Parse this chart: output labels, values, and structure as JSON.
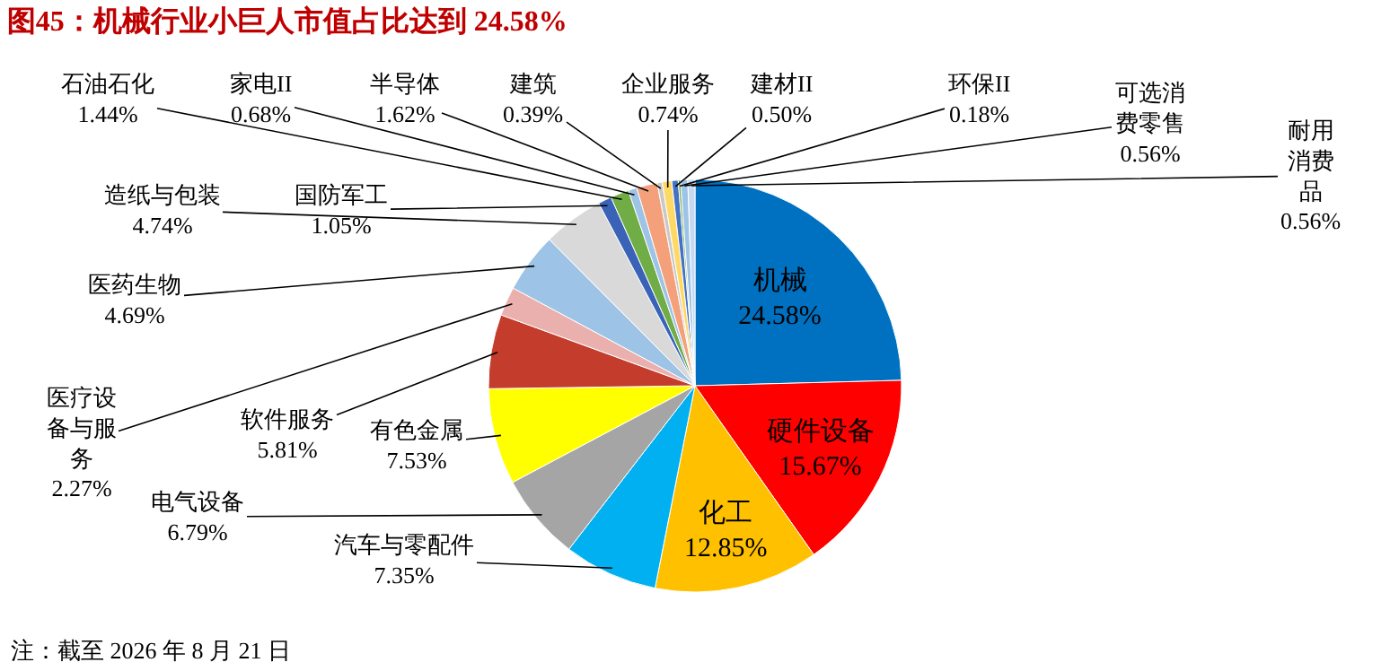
{
  "chart_data": {
    "type": "pie",
    "title": "图45：机械行业小巨人市值占比达到 24.58%",
    "categories": [
      "机械",
      "硬件设备",
      "化工",
      "汽车与零配件",
      "电气设备",
      "有色金属",
      "软件服务",
      "医疗设备与服务",
      "医药生物",
      "造纸与包装",
      "国防军工",
      "石油石化",
      "家电II",
      "半导体",
      "建筑",
      "企业服务",
      "建材II",
      "环保II",
      "可选消费零售",
      "耐用消费品"
    ],
    "values": [
      24.58,
      15.67,
      12.85,
      7.35,
      6.79,
      7.53,
      5.81,
      2.27,
      4.69,
      4.74,
      1.05,
      1.44,
      0.68,
      1.62,
      0.39,
      0.74,
      0.5,
      0.18,
      0.56,
      0.56
    ],
    "value_labels": [
      "24.58%",
      "15.67%",
      "12.85%",
      "7.35%",
      "6.79%",
      "7.53%",
      "5.81%",
      "2.27%",
      "4.69%",
      "4.74%",
      "1.05%",
      "1.44%",
      "0.68%",
      "1.62%",
      "0.39%",
      "0.74%",
      "0.50%",
      "0.18%",
      "0.56%",
      "0.56%"
    ],
    "colors": [
      "#0070c0",
      "#ff0000",
      "#ffc000",
      "#00b0f0",
      "#a5a5a5",
      "#ffff00",
      "#c43c2c",
      "#eab0ae",
      "#9dc3e6",
      "#d9d9d9",
      "#3a63b8",
      "#70ad47",
      "#9dc3e6",
      "#f4a07a",
      "#c9c9c9",
      "#ffd966",
      "#4472c4",
      "#70ad47",
      "#9dc3e6",
      "#c5d9f0"
    ],
    "data_labels": true,
    "legend": false,
    "annotations": [
      "注：截至 2026 年 8 月 21 日"
    ]
  }
}
